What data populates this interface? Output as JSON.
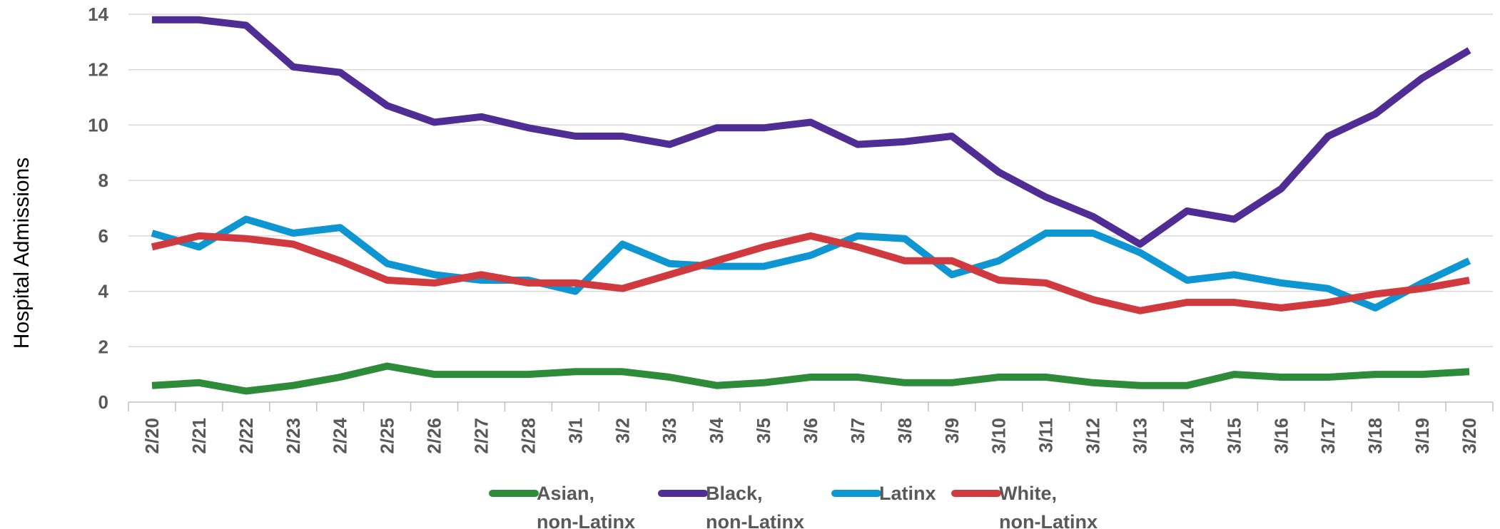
{
  "chart_data": {
    "type": "line",
    "ylabel": "Hospital Admissions",
    "xlabel": "",
    "ylim": [
      0,
      14
    ],
    "yticks": [
      "0",
      "2",
      "4",
      "6",
      "8",
      "10",
      "12",
      "14"
    ],
    "grid": true,
    "legend_position": "bottom",
    "categories": [
      "2/20",
      "2/21",
      "2/22",
      "2/23",
      "2/24",
      "2/25",
      "2/26",
      "2/27",
      "2/28",
      "3/1",
      "3/2",
      "3/3",
      "3/4",
      "3/5",
      "3/6",
      "3/7",
      "3/8",
      "3/9",
      "3/10",
      "3/11",
      "3/12",
      "3/13",
      "3/14",
      "3/15",
      "3/16",
      "3/17",
      "3/18",
      "3/19",
      "3/20"
    ],
    "series": [
      {
        "name": "Asian, non-Latinx",
        "label_lines": [
          "Asian,",
          "non-Latinx"
        ],
        "color": "#2e8b3a",
        "values": [
          0.6,
          0.7,
          0.4,
          0.6,
          0.9,
          1.3,
          1.0,
          1.0,
          1.0,
          1.1,
          1.1,
          0.9,
          0.6,
          0.7,
          0.9,
          0.9,
          0.7,
          0.7,
          0.9,
          0.9,
          0.7,
          0.6,
          0.6,
          1.0,
          0.9,
          0.9,
          1.0,
          1.0,
          1.1
        ]
      },
      {
        "name": "Black, non-Latinx",
        "label_lines": [
          "Black,",
          "non-Latinx"
        ],
        "color": "#4f2d94",
        "values": [
          13.8,
          13.8,
          13.6,
          12.1,
          11.9,
          10.7,
          10.1,
          10.3,
          9.9,
          9.6,
          9.6,
          9.3,
          9.9,
          9.9,
          10.1,
          9.3,
          9.4,
          9.6,
          8.3,
          7.4,
          6.7,
          5.7,
          6.9,
          6.6,
          7.7,
          9.6,
          10.4,
          11.7,
          12.7
        ]
      },
      {
        "name": "Latinx",
        "label_lines": [
          "Latinx"
        ],
        "color": "#0e96d3",
        "values": [
          6.1,
          5.6,
          6.6,
          6.1,
          6.3,
          5.0,
          4.6,
          4.4,
          4.4,
          4.0,
          5.7,
          5.0,
          4.9,
          4.9,
          5.3,
          6.0,
          5.9,
          4.6,
          5.1,
          6.1,
          6.1,
          5.4,
          4.4,
          4.6,
          4.3,
          4.1,
          3.4,
          4.3,
          5.1
        ]
      },
      {
        "name": "White, non-Latinx",
        "label_lines": [
          "White,",
          "non-Latinx"
        ],
        "color": "#d03a3f",
        "values": [
          5.6,
          6.0,
          5.9,
          5.7,
          5.1,
          4.4,
          4.3,
          4.6,
          4.3,
          4.3,
          4.1,
          4.6,
          5.1,
          5.6,
          6.0,
          5.6,
          5.1,
          5.1,
          4.4,
          4.3,
          3.7,
          3.3,
          3.6,
          3.6,
          3.4,
          3.6,
          3.9,
          4.1,
          4.4
        ]
      }
    ]
  }
}
